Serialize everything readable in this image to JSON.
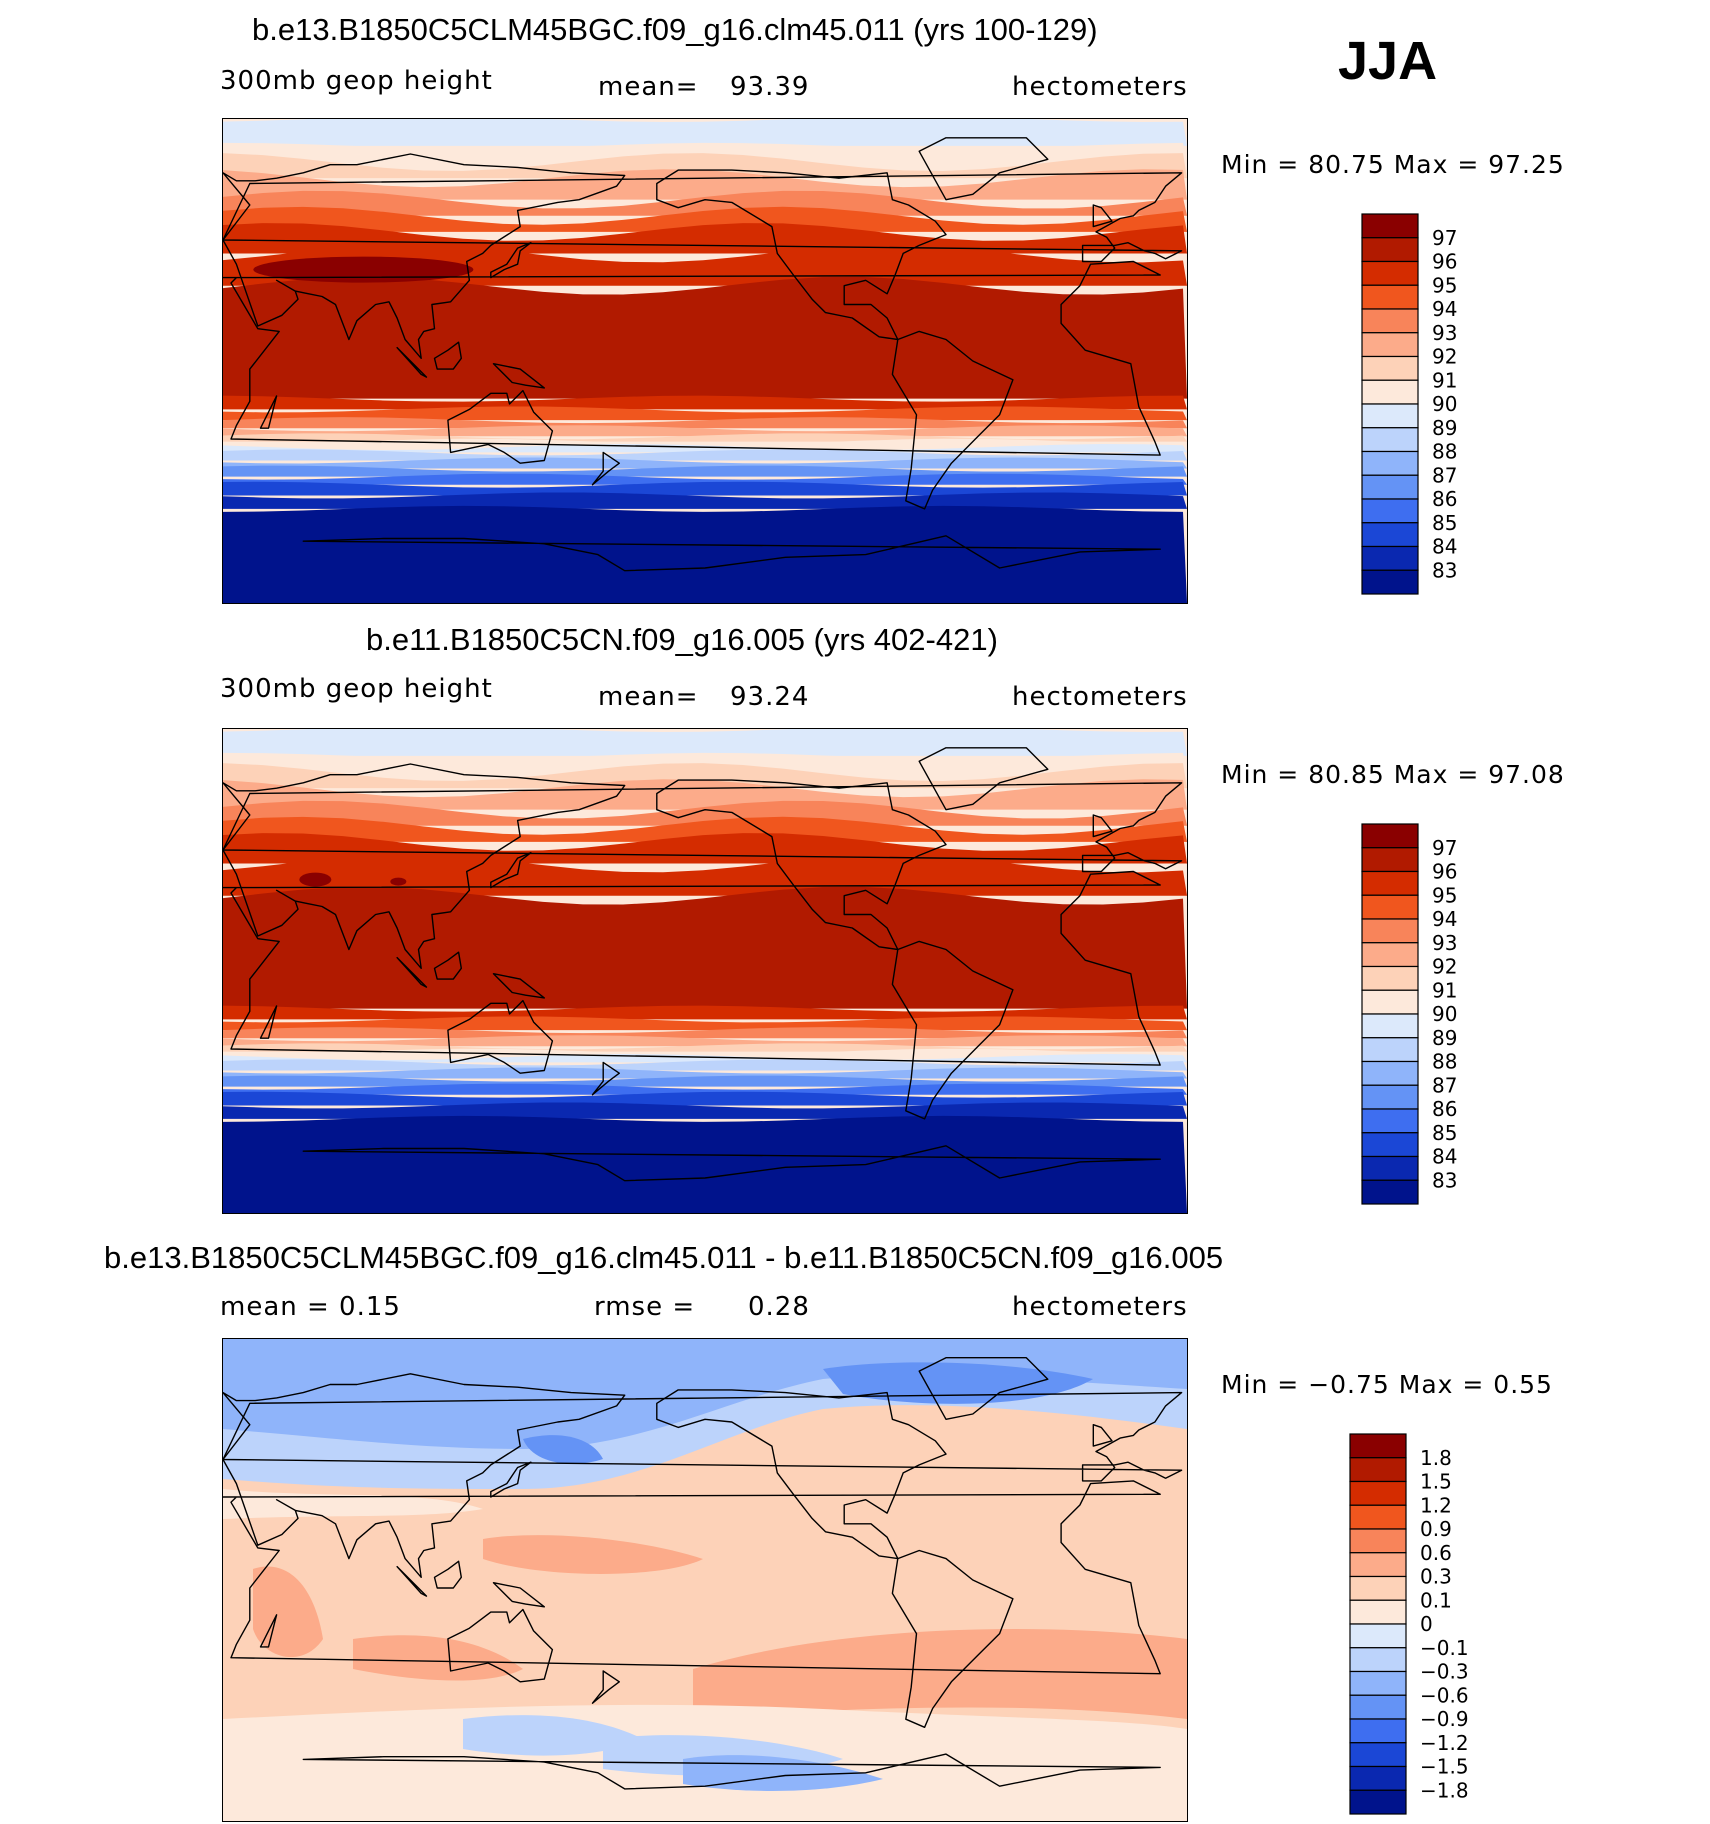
{
  "season": "JJA",
  "panels": [
    {
      "id": "p1",
      "title": "b.e13.B1850C5CLM45BGC.f09_g16.clm45.011 (yrs 100-129)",
      "left_text": "300mb  geop  height",
      "mid_label": "mean=",
      "mid_value": "93.39",
      "units": "hectometers",
      "minmax": "Min  =    80.75  Max  =    97.25",
      "colorbar_labels": [
        "97",
        "96",
        "95",
        "94",
        "93",
        "92",
        "91",
        "90",
        "89",
        "88",
        "87",
        "86",
        "85",
        "84",
        "83"
      ],
      "colors": [
        "#8a0000",
        "#b11a00",
        "#d42c00",
        "#f0561e",
        "#f8845a",
        "#fcab8a",
        "#fdd2b8",
        "#fde9db",
        "#dce9fb",
        "#bcd3fb",
        "#8fb4fa",
        "#6493f5",
        "#3e6ef0",
        "#1b47d6",
        "#0a28b0",
        "#00138c"
      ]
    },
    {
      "id": "p2",
      "title": "b.e11.B1850C5CN.f09_g16.005 (yrs 402-421)",
      "left_text": "300mb  geop  height",
      "mid_label": "mean=",
      "mid_value": "93.24",
      "units": "hectometers",
      "minmax": "Min  =    80.85  Max  =    97.08",
      "colorbar_labels": [
        "97",
        "96",
        "95",
        "94",
        "93",
        "92",
        "91",
        "90",
        "89",
        "88",
        "87",
        "86",
        "85",
        "84",
        "83"
      ],
      "colors": [
        "#8a0000",
        "#b11a00",
        "#d42c00",
        "#f0561e",
        "#f8845a",
        "#fcab8a",
        "#fdd2b8",
        "#fde9db",
        "#dce9fb",
        "#bcd3fb",
        "#8fb4fa",
        "#6493f5",
        "#3e6ef0",
        "#1b47d6",
        "#0a28b0",
        "#00138c"
      ]
    },
    {
      "id": "p3",
      "title": "b.e13.B1850C5CLM45BGC.f09_g16.clm45.011 - b.e11.B1850C5CN.f09_g16.005",
      "left_text": "mean =      0.15",
      "mid_label": "rmse =",
      "mid_value": "0.28",
      "units": "hectometers",
      "minmax": "Min  =   −0.75  Max  =     0.55",
      "colorbar_labels": [
        "1.8",
        "1.5",
        "1.2",
        "0.9",
        "0.6",
        "0.3",
        "0.1",
        "0",
        "−0.1",
        "−0.3",
        "−0.6",
        "−0.9",
        "−1.2",
        "−1.5",
        "−1.8"
      ],
      "colors": [
        "#8a0000",
        "#b11a00",
        "#d42c00",
        "#f0561e",
        "#f8845a",
        "#fcab8a",
        "#fdd2b8",
        "#fde9db",
        "#dce9fb",
        "#bcd3fb",
        "#8fb4fa",
        "#6493f5",
        "#3e6ef0",
        "#1b47d6",
        "#0a28b0",
        "#00138c"
      ]
    }
  ]
}
